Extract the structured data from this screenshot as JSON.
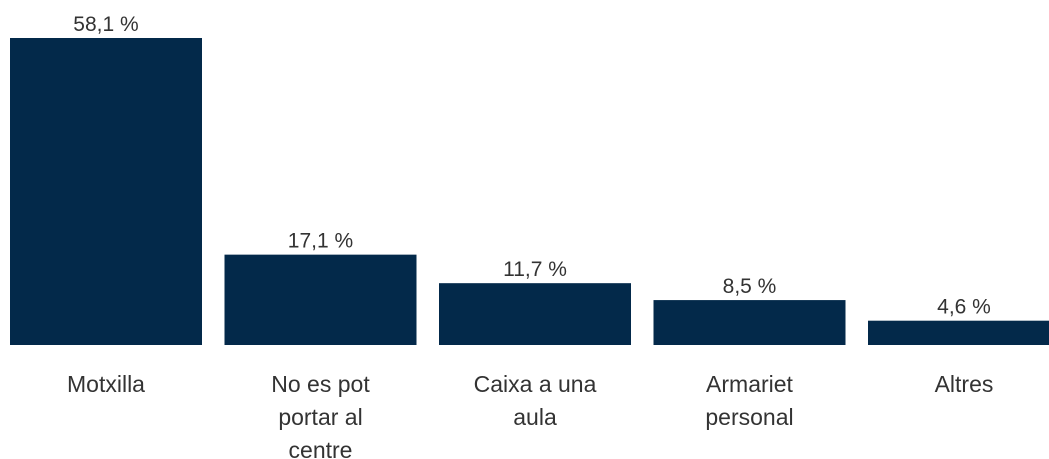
{
  "chart_data": {
    "type": "bar",
    "categories": [
      "Motxilla",
      "No es pot portar al centre",
      "Caixa a una aula",
      "Armariet personal",
      "Altres"
    ],
    "values": [
      58.1,
      17.1,
      11.7,
      8.5,
      4.6
    ],
    "value_labels": [
      "58,1 %",
      "17,1 %",
      "11,7 %",
      "8,5 %",
      "4,6 %"
    ],
    "color": "#03294a"
  }
}
